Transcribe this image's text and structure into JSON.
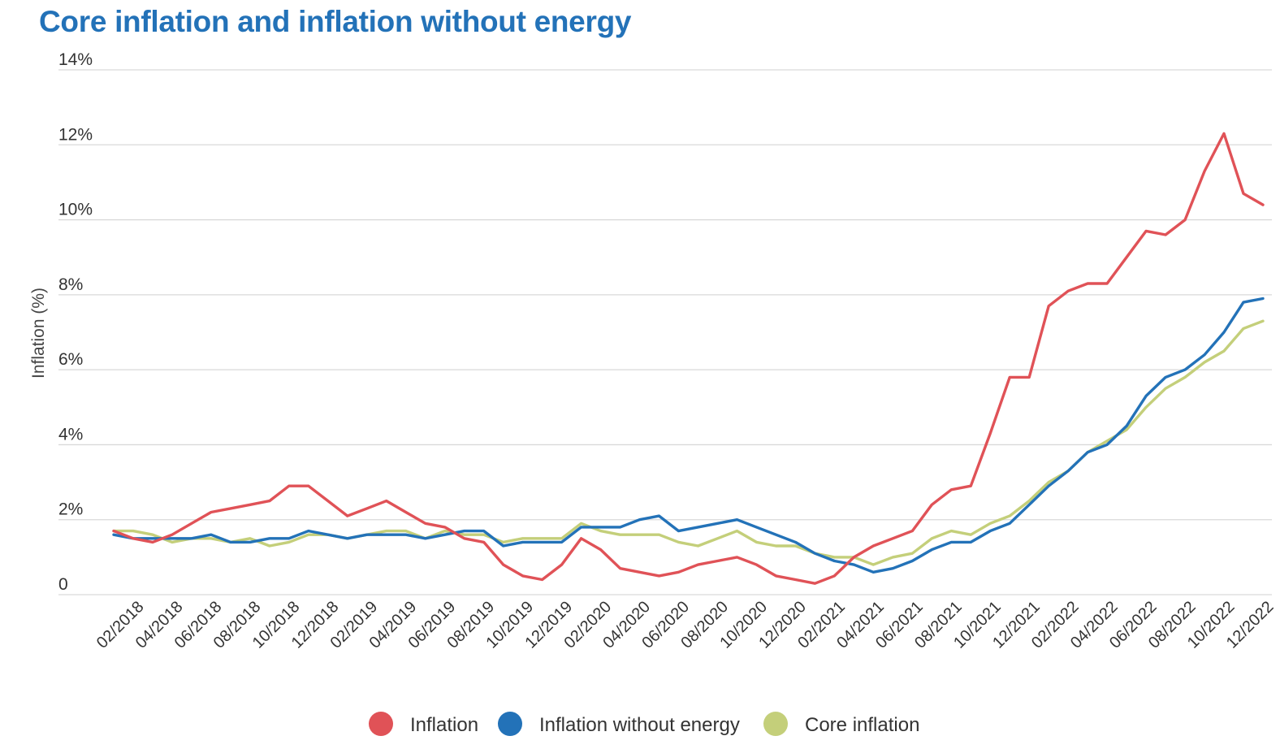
{
  "chart_data": {
    "type": "line",
    "title": "Core inflation and inflation without energy",
    "ylabel": "Inflation (%)",
    "xlabel": "",
    "ylim": [
      0,
      14
    ],
    "yticks": [
      0,
      2,
      4,
      6,
      8,
      10,
      12,
      14
    ],
    "ytick_labels": [
      "0",
      "2%",
      "4%",
      "6%",
      "8%",
      "10%",
      "12%",
      "14%"
    ],
    "grid": true,
    "legend_position": "bottom",
    "x": [
      "01/2018",
      "02/2018",
      "03/2018",
      "04/2018",
      "05/2018",
      "06/2018",
      "07/2018",
      "08/2018",
      "09/2018",
      "10/2018",
      "11/2018",
      "12/2018",
      "01/2019",
      "02/2019",
      "03/2019",
      "04/2019",
      "05/2019",
      "06/2019",
      "07/2019",
      "08/2019",
      "09/2019",
      "10/2019",
      "11/2019",
      "12/2019",
      "01/2020",
      "02/2020",
      "03/2020",
      "04/2020",
      "05/2020",
      "06/2020",
      "07/2020",
      "08/2020",
      "09/2020",
      "10/2020",
      "11/2020",
      "12/2020",
      "01/2021",
      "02/2021",
      "03/2021",
      "04/2021",
      "05/2021",
      "06/2021",
      "07/2021",
      "08/2021",
      "09/2021",
      "10/2021",
      "11/2021",
      "12/2021",
      "01/2022",
      "02/2022",
      "03/2022",
      "04/2022",
      "05/2022",
      "06/2022",
      "07/2022",
      "08/2022",
      "09/2022",
      "10/2022",
      "11/2022",
      "12/2022"
    ],
    "x_tick_labels": [
      "02/2018",
      "04/2018",
      "06/2018",
      "08/2018",
      "10/2018",
      "12/2018",
      "02/2019",
      "04/2019",
      "06/2019",
      "08/2019",
      "10/2019",
      "12/2019",
      "02/2020",
      "04/2020",
      "06/2020",
      "08/2020",
      "10/2020",
      "12/2020",
      "02/2021",
      "04/2021",
      "06/2021",
      "08/2021",
      "10/2021",
      "12/2021",
      "02/2022",
      "04/2022",
      "06/2022",
      "08/2022",
      "10/2022",
      "12/2022"
    ],
    "series": [
      {
        "name": "Inflation",
        "color": "#e05257",
        "values": [
          1.7,
          1.5,
          1.4,
          1.6,
          1.9,
          2.2,
          2.3,
          2.4,
          2.5,
          2.9,
          2.9,
          2.5,
          2.1,
          2.3,
          2.5,
          2.2,
          1.9,
          1.8,
          1.5,
          1.4,
          0.8,
          0.5,
          0.4,
          0.8,
          1.5,
          1.2,
          0.7,
          0.6,
          0.5,
          0.6,
          0.8,
          0.9,
          1.0,
          0.8,
          0.5,
          0.4,
          0.3,
          0.5,
          1.0,
          1.3,
          1.5,
          1.7,
          2.4,
          2.8,
          2.9,
          4.3,
          5.8,
          5.8,
          7.7,
          8.1,
          8.3,
          8.3,
          9.0,
          9.7,
          9.6,
          10.0,
          11.3,
          12.3,
          10.7,
          10.4
        ]
      },
      {
        "name": "Inflation without energy",
        "color": "#2372b8",
        "values": [
          1.6,
          1.5,
          1.5,
          1.5,
          1.5,
          1.6,
          1.4,
          1.4,
          1.5,
          1.5,
          1.7,
          1.6,
          1.5,
          1.6,
          1.6,
          1.6,
          1.5,
          1.6,
          1.7,
          1.7,
          1.3,
          1.4,
          1.4,
          1.4,
          1.8,
          1.8,
          1.8,
          2.0,
          2.1,
          1.7,
          1.8,
          1.9,
          2.0,
          1.8,
          1.6,
          1.4,
          1.1,
          0.9,
          0.8,
          0.6,
          0.7,
          0.9,
          1.2,
          1.4,
          1.4,
          1.7,
          1.9,
          2.4,
          2.9,
          3.3,
          3.8,
          4.0,
          4.5,
          5.3,
          5.8,
          6.0,
          6.4,
          7.0,
          7.8,
          7.9
        ]
      },
      {
        "name": "Core inflation",
        "color": "#c4cf7a",
        "values": [
          1.7,
          1.7,
          1.6,
          1.4,
          1.5,
          1.5,
          1.4,
          1.5,
          1.3,
          1.4,
          1.6,
          1.6,
          1.5,
          1.6,
          1.7,
          1.7,
          1.5,
          1.7,
          1.6,
          1.6,
          1.4,
          1.5,
          1.5,
          1.5,
          1.9,
          1.7,
          1.6,
          1.6,
          1.6,
          1.4,
          1.3,
          1.5,
          1.7,
          1.4,
          1.3,
          1.3,
          1.1,
          1.0,
          1.0,
          0.8,
          1.0,
          1.1,
          1.5,
          1.7,
          1.6,
          1.9,
          2.1,
          2.5,
          3.0,
          3.3,
          3.8,
          4.1,
          4.4,
          5.0,
          5.5,
          5.8,
          6.2,
          6.5,
          7.1,
          7.3
        ]
      }
    ]
  }
}
